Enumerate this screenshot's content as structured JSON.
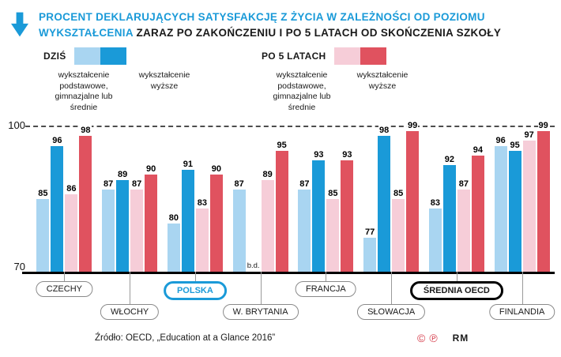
{
  "header": {
    "title_blue": "PROCENT DEKLARUJĄCYCH SATYSFAKCJĘ Z ŻYCIA W ZALEŻNOŚCI OD POZIOMU WYKSZTAŁCENIA",
    "title_black": " ZARAZ PO ZAKOŃCZENIU I PO 5 LATACH OD SKOŃCZENIA SZKOŁY"
  },
  "colors": {
    "accent_blue": "#1a9ad8",
    "light_blue": "#a9d5f1",
    "dark_blue": "#1a9ad8",
    "light_pink": "#f6cdd8",
    "red": "#e0525f"
  },
  "legend": {
    "today": {
      "label": "DZIŚ",
      "items": [
        {
          "color": "#a9d5f1",
          "text": "wykształcenie podstawowe, gimnazjalne lub średnie"
        },
        {
          "color": "#1a9ad8",
          "text": "wykształcenie wyższe"
        }
      ]
    },
    "after5": {
      "label": "PO 5 LATACH",
      "items": [
        {
          "color": "#f6cdd8",
          "text": "wykształcenie podstawowe, gimnazjalne lub średnie"
        },
        {
          "color": "#e0525f",
          "text": "wykształcenie wyższe"
        }
      ]
    }
  },
  "chart_data": {
    "type": "bar",
    "ylim": [
      70,
      100
    ],
    "ytick_top": "100",
    "ytick_bottom": "70",
    "grid": "dashed line at 100, solid baseline at 70",
    "no_data_label": "b.d.",
    "series": [
      {
        "name": "dziś – wykształcenie podstawowe, gimnazjalne lub średnie",
        "color": "#a9d5f1"
      },
      {
        "name": "dziś – wykształcenie wyższe",
        "color": "#1a9ad8"
      },
      {
        "name": "po 5 latach – wykształcenie podstawowe, gimnazjalne lub średnie",
        "color": "#f6cdd8"
      },
      {
        "name": "po 5 latach – wykształcenie wyższe",
        "color": "#e0525f"
      }
    ],
    "groups": [
      {
        "country": "CZECHY",
        "values": [
          85,
          96,
          86,
          98
        ],
        "row": "upper",
        "highlight": "none"
      },
      {
        "country": "WŁOCHY",
        "values": [
          87,
          89,
          87,
          90
        ],
        "row": "lower",
        "highlight": "none"
      },
      {
        "country": "POLSKA",
        "values": [
          80,
          91,
          83,
          90
        ],
        "row": "upper",
        "highlight": "blue"
      },
      {
        "country": "W. BRYTANIA",
        "values": [
          87,
          null,
          89,
          95
        ],
        "row": "lower",
        "highlight": "none"
      },
      {
        "country": "FRANCJA",
        "values": [
          87,
          93,
          85,
          93
        ],
        "row": "upper",
        "highlight": "none"
      },
      {
        "country": "SŁOWACJA",
        "values": [
          77,
          98,
          85,
          99
        ],
        "row": "lower",
        "highlight": "none"
      },
      {
        "country": "ŚREDNIA OECD",
        "values": [
          83,
          92,
          87,
          94
        ],
        "row": "upper",
        "highlight": "black"
      },
      {
        "country": "FINLANDIA",
        "values": [
          96,
          95,
          97,
          99
        ],
        "row": "lower",
        "highlight": "none"
      }
    ]
  },
  "footer": {
    "source": "Źródło: OECD, „Education at a Glance 2016”",
    "copyright_symbols": "©℗",
    "credit": "RM"
  }
}
